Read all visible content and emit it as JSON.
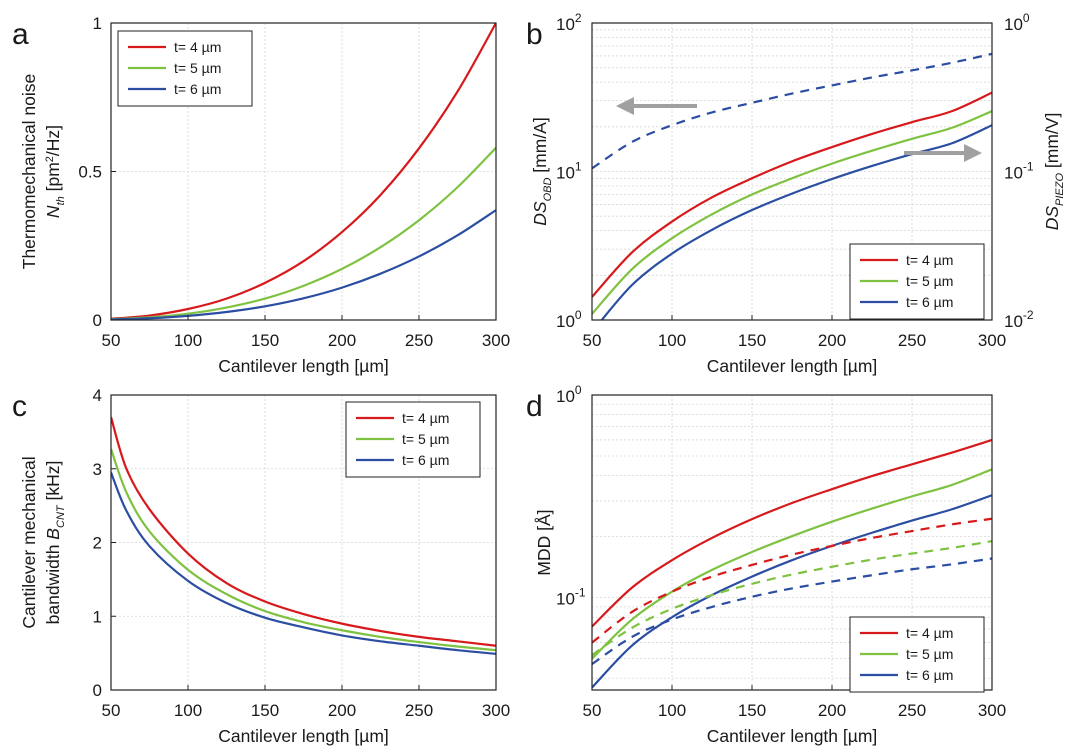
{
  "chart_data": [
    {
      "id": "a",
      "type": "line",
      "panel_label": "a",
      "x_scale": "linear",
      "y_scale": "linear",
      "xlim": [
        50,
        300
      ],
      "ylim": [
        0,
        1
      ],
      "grid": true,
      "xticks": [
        "50",
        "100",
        "150",
        "200",
        "250",
        "300"
      ],
      "yticks": [
        "0",
        "0.5",
        "1"
      ],
      "xlabel": "Cantilever length [µm]",
      "ylabel_lines": [
        "Thermomechanical noise"
      ],
      "ylabel_symbol": {
        "base": "N",
        "sub": "th",
        "suffix": " [pm",
        "sup": "2",
        "suffix2": "/Hz]"
      },
      "legend": "top-left",
      "series": [
        {
          "name": "t= 4 µm",
          "color": "#d7191c",
          "style": "solid",
          "x": [
            50,
            75,
            100,
            125,
            150,
            175,
            200,
            225,
            250,
            275,
            300
          ],
          "y": [
            0.004,
            0.015,
            0.037,
            0.072,
            0.125,
            0.198,
            0.296,
            0.421,
            0.578,
            0.769,
            1.0
          ]
        },
        {
          "name": "t= 5 µm",
          "color": "#7fc241",
          "style": "solid",
          "x": [
            50,
            75,
            100,
            125,
            150,
            175,
            200,
            225,
            250,
            275,
            300
          ],
          "y": [
            0.0027,
            0.009,
            0.021,
            0.042,
            0.072,
            0.115,
            0.172,
            0.245,
            0.336,
            0.447,
            0.58
          ]
        },
        {
          "name": "t= 6 µm",
          "color": "#2b4ea2",
          "style": "solid",
          "x": [
            50,
            75,
            100,
            125,
            150,
            175,
            200,
            225,
            250,
            275,
            300
          ],
          "y": [
            0.0017,
            0.006,
            0.014,
            0.027,
            0.046,
            0.073,
            0.109,
            0.156,
            0.214,
            0.285,
            0.37
          ]
        }
      ]
    },
    {
      "id": "b",
      "type": "line",
      "panel_label": "b",
      "x_scale": "linear",
      "y_scale": "log",
      "xlim": [
        50,
        300
      ],
      "ylim": [
        1,
        100
      ],
      "y2lim": [
        0.01,
        1
      ],
      "grid": true,
      "xticks": [
        "50",
        "100",
        "150",
        "200",
        "250",
        "300"
      ],
      "yticks": [
        {
          "base": "10",
          "exp": "0"
        },
        {
          "base": "10",
          "exp": "1"
        },
        {
          "base": "10",
          "exp": "2"
        }
      ],
      "y2ticks": [
        {
          "base": "10",
          "exp": "-2"
        },
        {
          "base": "10",
          "exp": "-1"
        },
        {
          "base": "10",
          "exp": "0"
        }
      ],
      "xlabel": "Cantilever length [µm]",
      "ylabel_symbol": {
        "base": "DS",
        "sub": "OBD",
        "suffix": " [mm/A]"
      },
      "y2label_symbol": {
        "base": "DS",
        "sub": "PIEZO",
        "suffix": " [mm/V]"
      },
      "legend": "bottom-right",
      "arrows": [
        "left",
        "right"
      ],
      "series": [
        {
          "name": "t= 4 µm",
          "color": "#d7191c",
          "style": "solid",
          "axis": "left",
          "x": [
            50,
            75,
            100,
            125,
            150,
            175,
            200,
            225,
            250,
            275,
            300
          ],
          "y": [
            1.43,
            2.85,
            4.6,
            6.7,
            9.0,
            11.7,
            14.6,
            17.9,
            21.5,
            25.5,
            34
          ]
        },
        {
          "name": "t= 5 µm",
          "color": "#7fc241",
          "style": "solid",
          "axis": "left",
          "x": [
            50,
            75,
            100,
            125,
            150,
            175,
            200,
            225,
            250,
            275,
            300
          ],
          "y": [
            1.1,
            2.2,
            3.55,
            5.15,
            7.0,
            9.0,
            11.3,
            13.8,
            16.6,
            19.7,
            25.5
          ]
        },
        {
          "name": "t= 6 µm",
          "color": "#2b4ea2",
          "style": "solid",
          "axis": "left",
          "x": [
            50,
            75,
            100,
            125,
            150,
            175,
            200,
            225,
            250,
            275,
            300
          ],
          "y": [
            0.83,
            1.72,
            2.8,
            4.05,
            5.5,
            7.1,
            8.9,
            10.9,
            13.1,
            15.5,
            20.5
          ]
        },
        {
          "color": "#2b4ea2",
          "style": "dashed",
          "axis": "right",
          "x": [
            50,
            75,
            100,
            125,
            150,
            175,
            200,
            225,
            250,
            275,
            300
          ],
          "y": [
            0.105,
            0.158,
            0.205,
            0.25,
            0.29,
            0.335,
            0.38,
            0.43,
            0.48,
            0.54,
            0.62
          ]
        }
      ]
    },
    {
      "id": "c",
      "type": "line",
      "panel_label": "c",
      "x_scale": "linear",
      "y_scale": "linear",
      "xlim": [
        50,
        300
      ],
      "ylim": [
        0,
        4
      ],
      "grid": true,
      "xticks": [
        "50",
        "100",
        "150",
        "200",
        "250",
        "300"
      ],
      "yticks": [
        "0",
        "1",
        "2",
        "3",
        "4"
      ],
      "xlabel": "Cantilever length [µm]",
      "ylabel_lines": [
        "Cantilever mechanical"
      ],
      "ylabel_symbol": {
        "prefix": "bandwidth ",
        "base": "B",
        "sub": "CNT",
        "suffix": " [kHz]"
      },
      "legend": "top-right",
      "series": [
        {
          "name": "t= 4 µm",
          "color": "#d7191c",
          "style": "solid",
          "x": [
            50,
            60,
            75,
            100,
            125,
            150,
            175,
            200,
            225,
            250,
            275,
            300
          ],
          "y": [
            3.7,
            3.0,
            2.45,
            1.85,
            1.45,
            1.2,
            1.03,
            0.9,
            0.8,
            0.72,
            0.66,
            0.6
          ]
        },
        {
          "name": "t= 5 µm",
          "color": "#7fc241",
          "style": "solid",
          "x": [
            50,
            60,
            75,
            100,
            125,
            150,
            175,
            200,
            225,
            250,
            275,
            300
          ],
          "y": [
            3.27,
            2.68,
            2.15,
            1.63,
            1.3,
            1.07,
            0.92,
            0.81,
            0.72,
            0.65,
            0.59,
            0.54
          ]
        },
        {
          "name": "t= 6 µm",
          "color": "#2b4ea2",
          "style": "solid",
          "x": [
            50,
            60,
            75,
            100,
            125,
            150,
            175,
            200,
            225,
            250,
            275,
            300
          ],
          "y": [
            2.95,
            2.43,
            1.95,
            1.48,
            1.18,
            0.98,
            0.85,
            0.74,
            0.66,
            0.6,
            0.54,
            0.49
          ]
        }
      ]
    },
    {
      "id": "d",
      "type": "line",
      "panel_label": "d",
      "x_scale": "linear",
      "y_scale": "log",
      "xlim": [
        50,
        300
      ],
      "ylim": [
        0.035,
        1
      ],
      "grid": true,
      "xticks": [
        "50",
        "100",
        "150",
        "200",
        "250",
        "300"
      ],
      "yticks": [
        {
          "base": "10",
          "exp": "-1",
          "value": 0.1
        },
        {
          "base": "10",
          "exp": "0",
          "value": 1
        }
      ],
      "xlabel": "Cantilever length [µm]",
      "ylabel": "MDD [Å]",
      "legend": "bottom-right",
      "series": [
        {
          "name": "t= 4 µm",
          "color": "#d7191c",
          "style": "solid",
          "x": [
            50,
            75,
            100,
            125,
            150,
            175,
            200,
            225,
            250,
            275,
            300
          ],
          "y": [
            0.072,
            0.112,
            0.153,
            0.197,
            0.244,
            0.293,
            0.343,
            0.398,
            0.455,
            0.52,
            0.6
          ]
        },
        {
          "name": "t= 5 µm",
          "color": "#7fc241",
          "style": "solid",
          "x": [
            50,
            75,
            100,
            125,
            150,
            175,
            200,
            225,
            250,
            275,
            300
          ],
          "y": [
            0.05,
            0.078,
            0.107,
            0.137,
            0.168,
            0.201,
            0.237,
            0.275,
            0.316,
            0.36,
            0.43
          ]
        },
        {
          "name": "t= 6 µm",
          "color": "#2b4ea2",
          "style": "solid",
          "x": [
            50,
            75,
            100,
            125,
            150,
            175,
            200,
            225,
            250,
            275,
            300
          ],
          "y": [
            0.036,
            0.058,
            0.08,
            0.103,
            0.127,
            0.153,
            0.18,
            0.209,
            0.24,
            0.273,
            0.32
          ]
        },
        {
          "color": "#d7191c",
          "style": "dashed",
          "x": [
            50,
            75,
            100,
            125,
            150,
            175,
            200,
            225,
            250,
            275,
            300
          ],
          "y": [
            0.06,
            0.085,
            0.107,
            0.127,
            0.145,
            0.163,
            0.18,
            0.197,
            0.213,
            0.23,
            0.245
          ]
        },
        {
          "color": "#7fc241",
          "style": "dashed",
          "x": [
            50,
            75,
            100,
            125,
            150,
            175,
            200,
            225,
            250,
            275,
            300
          ],
          "y": [
            0.052,
            0.071,
            0.088,
            0.103,
            0.117,
            0.13,
            0.142,
            0.154,
            0.165,
            0.176,
            0.19
          ]
        },
        {
          "color": "#2b4ea2",
          "style": "dashed",
          "x": [
            50,
            75,
            100,
            125,
            150,
            175,
            200,
            225,
            250,
            275,
            300
          ],
          "y": [
            0.047,
            0.064,
            0.078,
            0.09,
            0.101,
            0.111,
            0.12,
            0.129,
            0.138,
            0.146,
            0.156
          ]
        }
      ]
    }
  ]
}
